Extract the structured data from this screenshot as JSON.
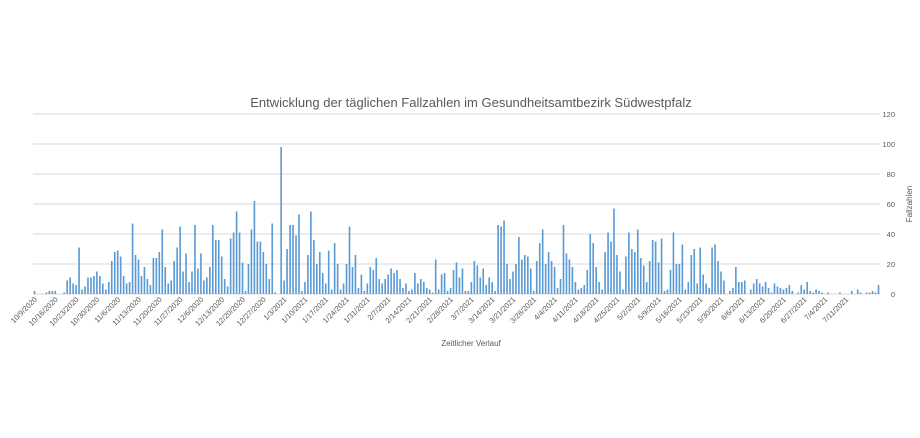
{
  "chart_data": {
    "type": "bar",
    "title": "Entwicklung der täglichen Fallzahlen im Gesundheitsamtbezirk Südwestpfalz",
    "xlabel": "Zeitlicher Verlauf",
    "ylabel": "Fallzahlen",
    "ylim": [
      0,
      120
    ],
    "yticks": [
      0,
      20,
      40,
      60,
      80,
      100,
      120
    ],
    "y_axis_side": "right",
    "grid": true,
    "legend": "none",
    "bar_color": "#5b9bd5",
    "x_tick_labels": [
      "10/9/2020",
      "10/16/2020",
      "10/23/2020",
      "10/30/2020",
      "11/6/2020",
      "11/13/2020",
      "11/20/2020",
      "11/27/2020",
      "12/6/2020",
      "12/13/2020",
      "12/20/2020",
      "12/27/2020",
      "1/3/2021",
      "1/10/2021",
      "1/17/2021",
      "1/24/2021",
      "1/31/2021",
      "2/7/2021",
      "2/14/2021",
      "2/21/2021",
      "2/28/2021",
      "3/7/2021",
      "3/14/2021",
      "3/21/2021",
      "3/28/2021",
      "4/4/2021",
      "4/11/2021",
      "4/18/2021",
      "4/25/2021",
      "5/2/2021",
      "5/9/2021",
      "5/16/2021",
      "5/23/2021",
      "5/30/2021",
      "6/6/2021",
      "6/13/2021",
      "6/20/2021",
      "6/27/2021",
      "7/4/2021",
      "7/11/2021"
    ],
    "values": [
      2,
      0,
      0,
      0,
      1,
      2,
      2,
      2,
      0,
      0,
      1,
      9,
      11,
      7,
      6,
      31,
      3,
      5,
      11,
      11,
      12,
      15,
      12,
      7,
      3,
      8,
      22,
      28,
      29,
      25,
      12,
      7,
      8,
      47,
      26,
      23,
      12,
      18,
      10,
      6,
      24,
      24,
      28,
      43,
      18,
      7,
      9,
      22,
      31,
      45,
      15,
      27,
      8,
      15,
      46,
      17,
      27,
      9,
      11,
      18,
      46,
      36,
      36,
      25,
      10,
      5,
      37,
      41,
      55,
      41,
      21,
      2,
      20,
      43,
      62,
      35,
      35,
      28,
      20,
      10,
      47,
      1,
      0,
      98,
      9,
      30,
      46,
      46,
      39,
      53,
      2,
      8,
      26,
      55,
      36,
      20,
      28,
      14,
      7,
      29,
      3,
      34,
      20,
      3,
      7,
      20,
      45,
      18,
      26,
      4,
      13,
      2,
      7,
      18,
      16,
      24,
      10,
      7,
      10,
      13,
      17,
      14,
      16,
      10,
      4,
      7,
      2,
      3,
      14,
      7,
      10,
      8,
      4,
      3,
      1,
      23,
      3,
      13,
      14,
      2,
      4,
      16,
      21,
      11,
      17,
      2,
      2,
      8,
      22,
      19,
      11,
      17,
      6,
      11,
      8,
      2,
      46,
      45,
      49,
      20,
      10,
      15,
      20,
      38,
      23,
      26,
      25,
      17,
      2,
      22,
      34,
      43,
      20,
      28,
      22,
      18,
      4,
      10,
      46,
      27,
      23,
      18,
      8,
      3,
      4,
      6,
      16,
      40,
      34,
      18,
      8,
      3,
      28,
      41,
      35,
      57,
      26,
      15,
      3,
      25,
      41,
      30,
      28,
      43,
      24,
      19,
      8,
      22,
      36,
      35,
      21,
      37,
      2,
      3,
      16,
      41,
      20,
      20,
      33,
      3,
      8,
      26,
      30,
      7,
      31,
      13,
      7,
      4,
      31,
      33,
      22,
      15,
      9,
      0,
      2,
      4,
      18,
      8,
      8,
      9,
      0,
      3,
      7,
      10,
      7,
      5,
      8,
      4,
      1,
      7,
      5,
      4,
      3,
      4,
      6,
      2,
      0,
      1,
      6,
      3,
      8,
      2,
      1,
      3,
      2,
      1,
      0,
      1,
      0,
      0,
      0,
      1,
      0,
      0,
      0,
      2,
      0,
      3,
      1,
      0,
      1,
      1,
      2,
      1,
      6
    ]
  }
}
